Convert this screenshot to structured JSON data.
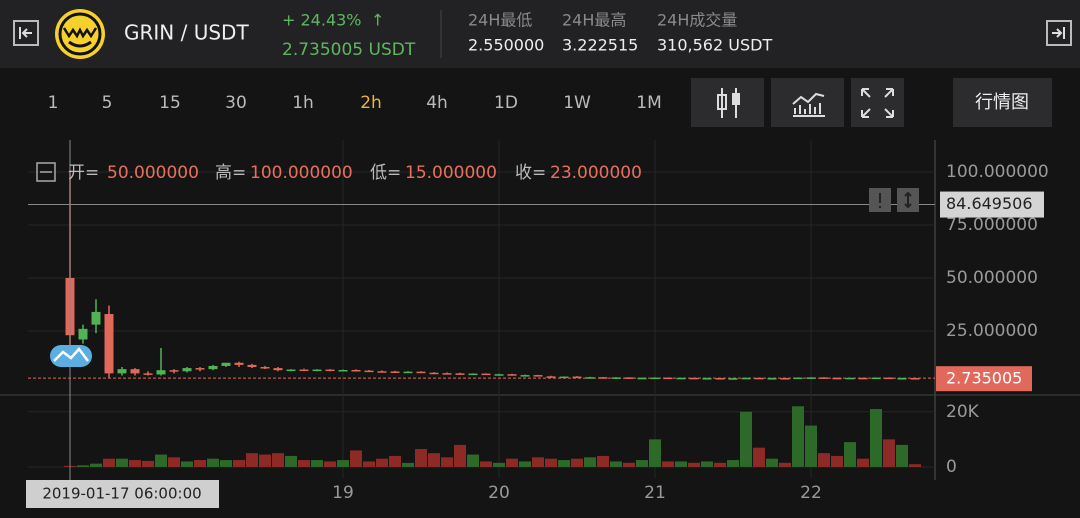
{
  "header": {
    "pair": "GRIN / USDT",
    "change": "+ 24.43%",
    "arrow": "↑",
    "price": "2.735005 USDT",
    "stats": [
      {
        "label": "24H最低",
        "value": "2.550000"
      },
      {
        "label": "24H最高",
        "value": "3.222515"
      },
      {
        "label": "24H成交量",
        "value": "310,562 USDT"
      }
    ]
  },
  "toolbar": {
    "intervals": [
      "1",
      "5",
      "15",
      "30",
      "1h",
      "2h",
      "4h",
      "1D",
      "1W",
      "1M"
    ],
    "active": "2h",
    "view": "行情图"
  },
  "chart_data": {
    "type": "candlestick",
    "hover": {
      "labels": [
        "开=",
        "高=",
        "低=",
        "收="
      ],
      "values": [
        50,
        100,
        15,
        23
      ],
      "value_labels": [
        "50.000000",
        "100.000000",
        "15.000000",
        "23.000000"
      ]
    },
    "crosshair_x": "2019-01-17 06:00:00",
    "crosshair_y": 84.649506,
    "last_price": 2.735005,
    "up_color": "#52b356",
    "down_color": "#e0695b",
    "volume_up_color": "#2d6a2a",
    "volume_down_color": "#8e2a25",
    "xticks": [
      {
        "value": 21,
        "label": "19"
      },
      {
        "value": 33,
        "label": "20"
      },
      {
        "value": 45,
        "label": "21"
      },
      {
        "value": 57,
        "label": "22"
      }
    ],
    "ylim": [
      -5.2,
      115.1
    ],
    "yticks": [
      {
        "value": 100,
        "label": "100.000000"
      },
      {
        "value": 75,
        "label": "75.000000"
      },
      {
        "value": 50,
        "label": "50.000000"
      },
      {
        "value": 25,
        "label": "25.000000"
      }
    ],
    "volume_ylim": [
      -4000,
      25000
    ],
    "volume_ticks": [
      {
        "value": 20000,
        "label": "20K"
      },
      0
    ],
    "open": [
      50,
      21,
      28,
      33,
      5,
      7,
      5,
      4.5,
      6.5,
      6,
      7.5,
      7,
      8.5,
      10,
      9,
      8,
      7.5,
      6.5,
      6.8,
      6.5,
      6.8,
      6.3,
      6.6,
      6.3,
      6,
      5.9,
      5.6,
      5.8,
      5.3,
      5.1,
      5,
      4.7,
      4.9,
      4.4,
      4.6,
      4.1,
      4.2,
      3.6,
      3.4,
      3.5,
      3.1,
      3.2,
      2.9,
      3.1,
      2.8,
      2.9,
      3.0,
      2.7,
      2.9,
      2.7,
      2.8,
      2.6,
      2.7,
      2.9,
      2.7,
      2.8,
      2.6,
      3.0,
      3.1,
      2.9,
      2.7,
      2.9,
      2.7,
      3.0,
      2.7,
      2.8
    ],
    "high": [
      100,
      28,
      40,
      37,
      8,
      7.5,
      6,
      17,
      7,
      8,
      8,
      9,
      10,
      10.5,
      9.5,
      8.5,
      8,
      7,
      7.2,
      7,
      7,
      6.8,
      6.9,
      6.6,
      6.4,
      6.2,
      6,
      6,
      5.6,
      5.4,
      5.3,
      5,
      5,
      4.8,
      4.8,
      4.4,
      4.3,
      3.9,
      3.6,
      3.7,
      3.4,
      3.3,
      3.2,
      3.2,
      3.0,
      3.1,
      3.1,
      3,
      3,
      2.9,
      2.9,
      2.8,
      3.0,
      3.0,
      2.9,
      2.9,
      3.1,
      3.2,
      3.2,
      3.0,
      3.0,
      3.0,
      3.1,
      3.1,
      2.9,
      2.9
    ],
    "low": [
      15,
      19,
      24,
      3,
      4,
      4,
      4,
      4,
      5,
      5.5,
      6,
      6.5,
      8,
      8,
      7.5,
      7,
      6,
      6,
      6.2,
      6,
      6,
      6,
      6.1,
      5.9,
      5.7,
      5.5,
      5.3,
      5.2,
      5,
      4.8,
      4.6,
      4.4,
      4.3,
      4.1,
      4.0,
      3.7,
      3.5,
      3.3,
      3.0,
      3.0,
      2.8,
      2.8,
      2.7,
      2.7,
      2.6,
      2.7,
      2.6,
      2.6,
      2.6,
      2.5,
      2.5,
      2.5,
      2.6,
      2.6,
      2.6,
      2.5,
      2.5,
      2.8,
      2.8,
      2.6,
      2.6,
      2.6,
      2.6,
      2.6,
      2.6,
      2.6
    ],
    "close": [
      23,
      26,
      34,
      5,
      7,
      5,
      4.5,
      6.5,
      6,
      7.5,
      7,
      8.5,
      10,
      9,
      8,
      7.5,
      6.5,
      6.8,
      6.5,
      6.8,
      6.3,
      6.6,
      6.3,
      6.0,
      5.9,
      5.6,
      5.8,
      5.3,
      5.1,
      5.0,
      4.7,
      4.9,
      4.4,
      4.6,
      4.1,
      4.2,
      3.6,
      3.4,
      3.5,
      3.1,
      3.2,
      2.9,
      3.1,
      2.8,
      2.9,
      3.0,
      2.7,
      2.9,
      2.7,
      2.8,
      2.6,
      2.7,
      2.9,
      2.7,
      2.8,
      2.6,
      3.0,
      3.1,
      2.9,
      2.7,
      2.9,
      2.7,
      3.0,
      2.7,
      2.8,
      2.735005
    ],
    "volume": [
      400,
      600,
      1200,
      3000,
      3000,
      2500,
      2200,
      4500,
      3500,
      2000,
      2500,
      3000,
      2500,
      2500,
      5000,
      4500,
      5000,
      4000,
      2500,
      2500,
      2000,
      2500,
      6000,
      2000,
      3000,
      4000,
      1500,
      6500,
      5000,
      3500,
      8000,
      4500,
      2000,
      1500,
      3000,
      2000,
      3500,
      3000,
      2500,
      3000,
      3500,
      4000,
      2000,
      1500,
      2500,
      10000,
      2000,
      2000,
      1500,
      2000,
      1500,
      2500,
      20000,
      7000,
      3000,
      1500,
      22000,
      15000,
      5000,
      4000,
      9000,
      3000,
      21000,
      10000,
      8000,
      1000
    ]
  }
}
